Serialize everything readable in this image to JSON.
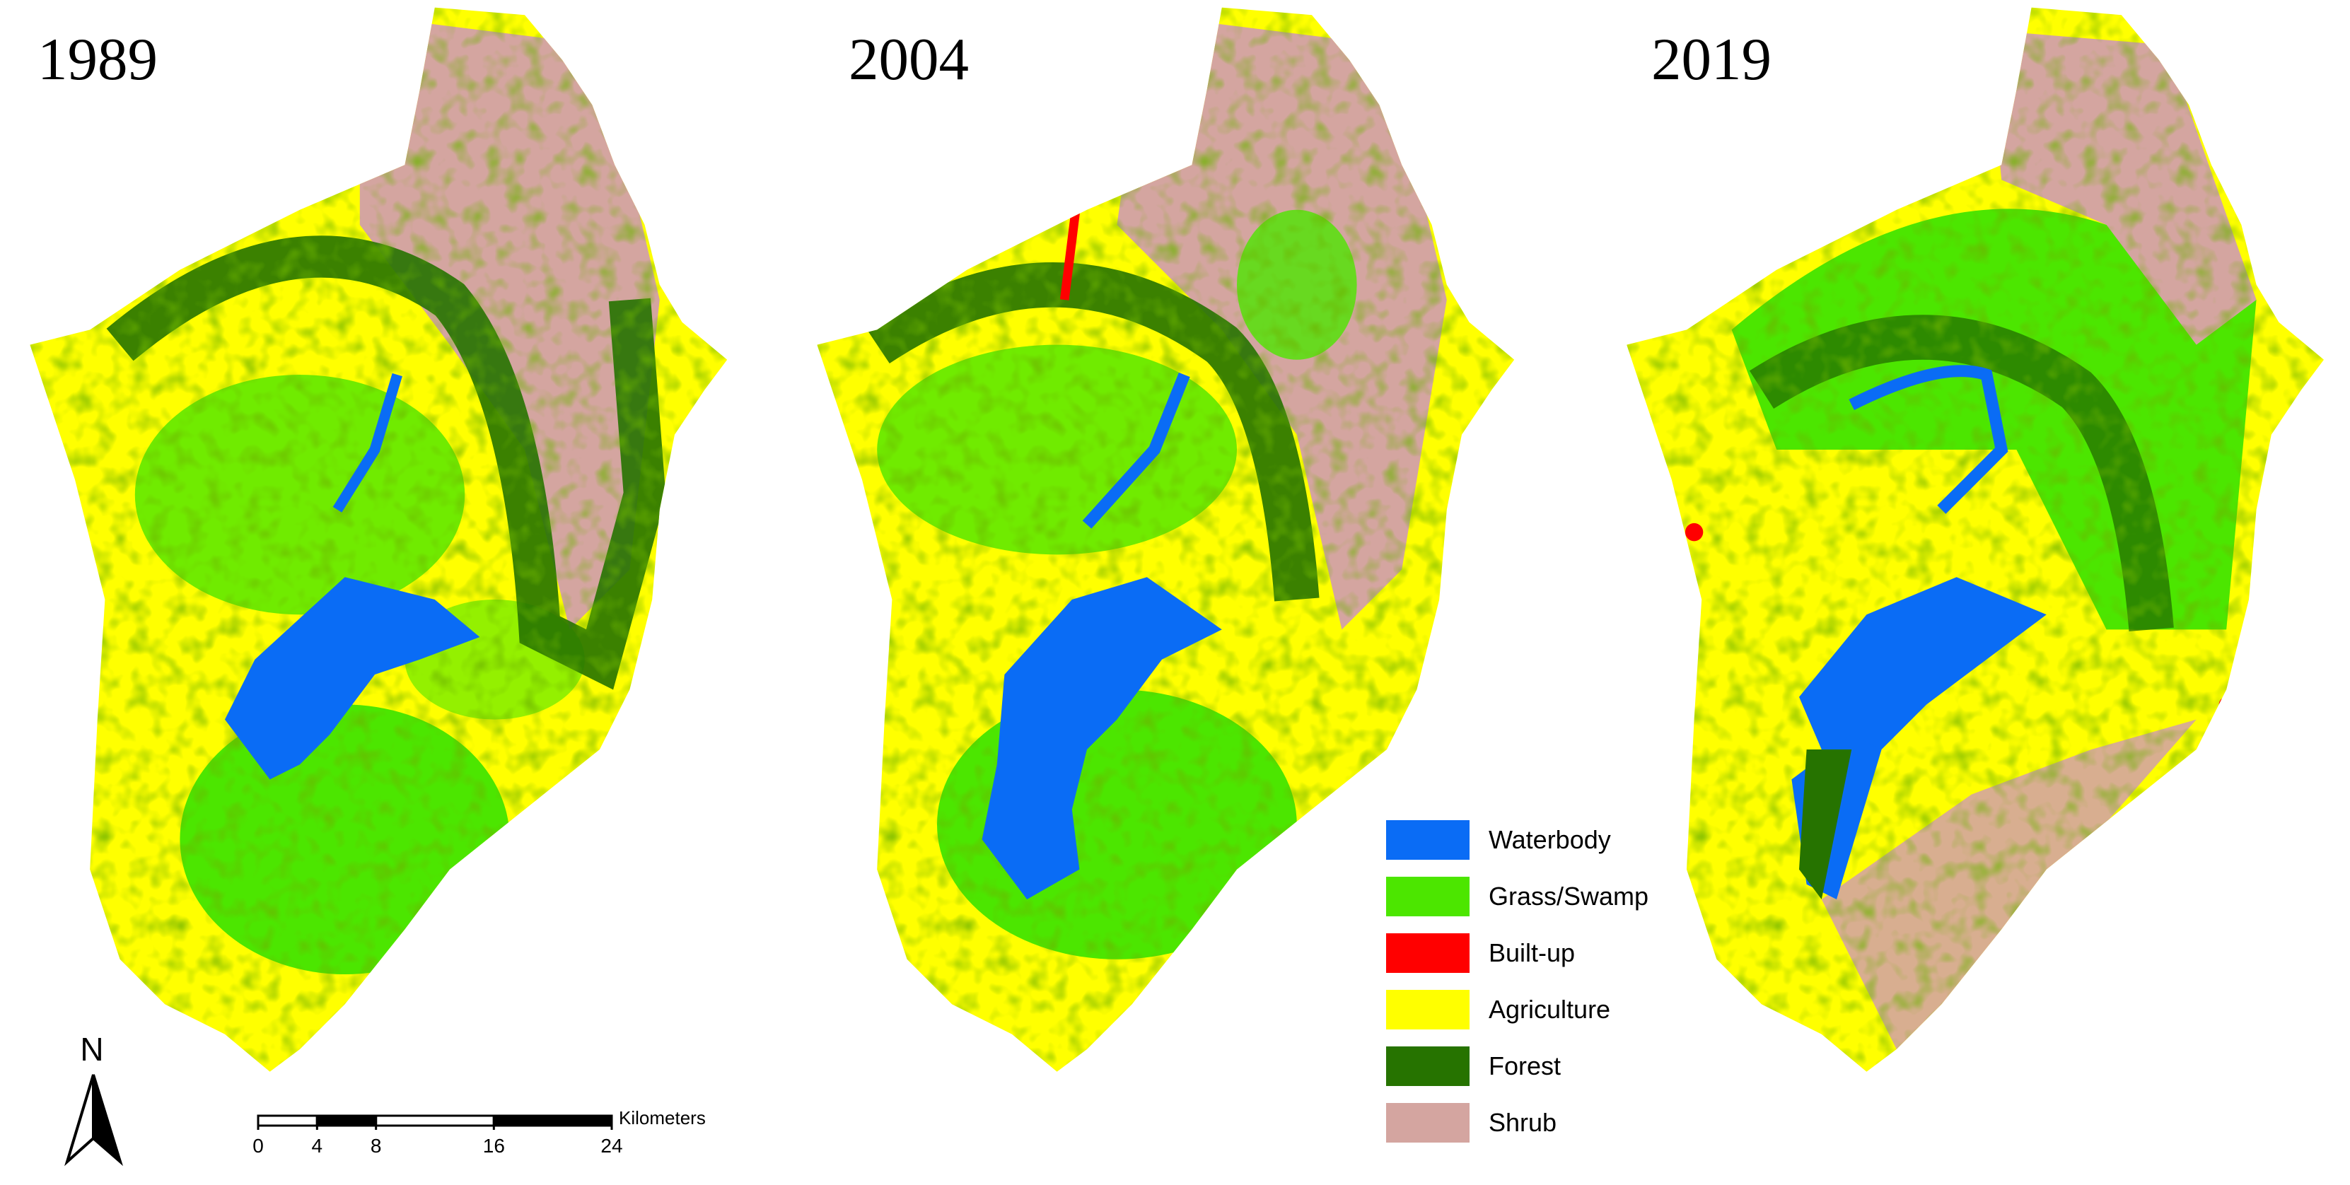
{
  "maps": [
    {
      "year": "1989"
    },
    {
      "year": "2004"
    },
    {
      "year": "2019"
    }
  ],
  "legend": [
    {
      "label": "Waterbody",
      "color": "#0a6cf5"
    },
    {
      "label": "Grass/Swamp",
      "color": "#4ce600"
    },
    {
      "label": "Built-up",
      "color": "#ff0000"
    },
    {
      "label": "Agriculture",
      "color": "#ffff00"
    },
    {
      "label": "Forest",
      "color": "#267300"
    },
    {
      "label": "Shrub",
      "color": "#d4a5a0"
    }
  ],
  "north_arrow": {
    "label": "N"
  },
  "scale_bar": {
    "unit": "Kilometers",
    "ticks": [
      0,
      4,
      8,
      16,
      24
    ]
  }
}
